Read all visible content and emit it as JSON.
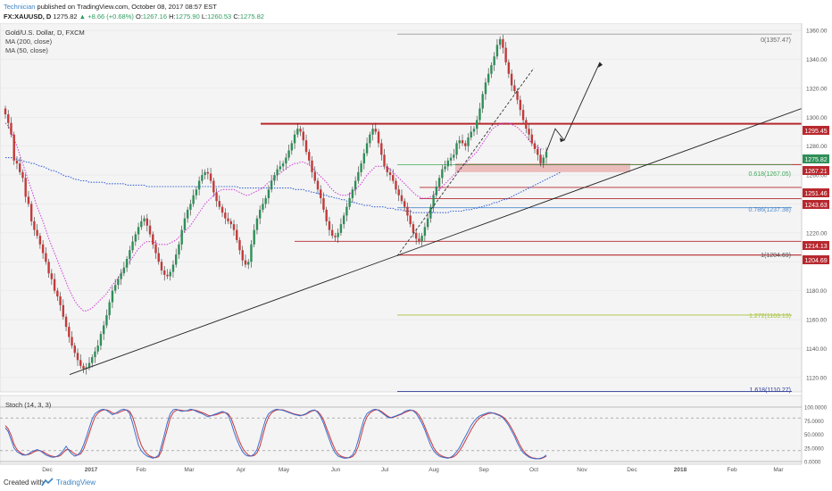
{
  "header": {
    "author": "Technician",
    "published": "published on TradingView.com, October 08, 2017 08:57 EST",
    "symbol": "FX:XAUUSD, D",
    "price": "1275.82",
    "change": "+8.66 (+0.68%)",
    "o_label": "O:",
    "o": "1267.16",
    "h_label": "H:",
    "h": "1275.90",
    "l_label": "L:",
    "l": "1260.53",
    "c_label": "C:",
    "c": "1275.82"
  },
  "legend": {
    "title": "Gold/U.S. Dollar, D, FXCM",
    "ma200": "MA (200, close)",
    "ma50": "MA (50, close)"
  },
  "footer": {
    "created": "Created with",
    "brand": "TradingView"
  },
  "colors": {
    "up": "#2f8f58",
    "down": "#c33a3a",
    "ma200": "#3b66d6",
    "ma50": "#d24ad8",
    "resistance": "#b7282e",
    "fib_green": "#3faa5a",
    "fib_blue": "#4d8ccc",
    "fib_lime": "#a3c233",
    "fib_navy": "#2f3d9a",
    "stoch_k": "#3c6fd1",
    "stoch_d": "#c8383d"
  },
  "chart_data": {
    "type": "candlestick",
    "price_axis": {
      "min": 1110,
      "max": 1365,
      "ticks": [
        1120,
        1140,
        1160,
        1180,
        1200,
        1220,
        1240,
        1260,
        1280,
        1300,
        1320,
        1340,
        1360
      ]
    },
    "x_labels": [
      "Dec",
      "2017",
      "Feb",
      "Mar",
      "Apr",
      "May",
      "Jun",
      "Jul",
      "Aug",
      "Sep",
      "Oct",
      "Nov",
      "Dec",
      "2018",
      "Feb",
      "Mar"
    ],
    "closes": [
      1302,
      1296,
      1288,
      1270,
      1268,
      1262,
      1258,
      1245,
      1240,
      1228,
      1222,
      1218,
      1212,
      1206,
      1200,
      1192,
      1188,
      1180,
      1176,
      1170,
      1162,
      1155,
      1148,
      1142,
      1137,
      1132,
      1128,
      1126,
      1127,
      1130,
      1134,
      1138,
      1142,
      1150,
      1156,
      1163,
      1172,
      1180,
      1184,
      1188,
      1192,
      1196,
      1202,
      1208,
      1214,
      1219,
      1224,
      1228,
      1230,
      1225,
      1219,
      1212,
      1206,
      1200,
      1194,
      1191,
      1190,
      1193,
      1198,
      1205,
      1212,
      1222,
      1230,
      1236,
      1240,
      1246,
      1250,
      1256,
      1260,
      1262,
      1261,
      1256,
      1248,
      1242,
      1238,
      1234,
      1230,
      1228,
      1226,
      1222,
      1215,
      1208,
      1201,
      1198,
      1200,
      1212,
      1222,
      1230,
      1236,
      1240,
      1244,
      1250,
      1256,
      1260,
      1264,
      1266,
      1268,
      1272,
      1277,
      1282,
      1288,
      1292,
      1290,
      1284,
      1276,
      1270,
      1262,
      1256,
      1250,
      1244,
      1236,
      1228,
      1222,
      1218,
      1217,
      1220,
      1226,
      1232,
      1238,
      1244,
      1250,
      1256,
      1262,
      1268,
      1275,
      1282,
      1288,
      1292,
      1290,
      1282,
      1274,
      1266,
      1262,
      1260,
      1256,
      1250,
      1246,
      1242,
      1238,
      1232,
      1226,
      1220,
      1216,
      1214,
      1218,
      1224,
      1230,
      1238,
      1246,
      1252,
      1258,
      1264,
      1266,
      1270,
      1272,
      1274,
      1282,
      1284,
      1282,
      1280,
      1286,
      1290,
      1292,
      1298,
      1306,
      1316,
      1324,
      1330,
      1336,
      1342,
      1350,
      1354,
      1348,
      1338,
      1330,
      1322,
      1318,
      1312,
      1305,
      1298,
      1292,
      1288,
      1282,
      1278,
      1274,
      1268,
      1272,
      1276
    ],
    "ma50": [
      1296,
      1294,
      1290,
      1285,
      1280,
      1274,
      1268,
      1262,
      1256,
      1250,
      1244,
      1238,
      1233,
      1228,
      1222,
      1216,
      1211,
      1206,
      1201,
      1196,
      1191,
      1186,
      1181,
      1177,
      1173,
      1170,
      1168,
      1166,
      1166,
      1167,
      1168,
      1170,
      1172,
      1174,
      1176,
      1178,
      1181,
      1184,
      1186,
      1189,
      1192,
      1195,
      1198,
      1200,
      1203,
      1206,
      1209,
      1211,
      1213,
      1214,
      1214,
      1214,
      1213,
      1212,
      1212,
      1212,
      1212,
      1213,
      1214,
      1215,
      1217,
      1219,
      1221,
      1223,
      1225,
      1228,
      1231,
      1234,
      1237,
      1240,
      1242,
      1244,
      1246,
      1248,
      1249,
      1250,
      1250,
      1250,
      1250,
      1250,
      1249,
      1248,
      1247,
      1246,
      1246,
      1247,
      1248,
      1249,
      1250,
      1251,
      1253,
      1255,
      1256,
      1258,
      1260,
      1261,
      1263,
      1264,
      1266,
      1267,
      1268,
      1268,
      1269,
      1269,
      1268,
      1267,
      1265,
      1263,
      1261,
      1259,
      1257,
      1255,
      1252,
      1250,
      1248,
      1247,
      1246,
      1246,
      1246,
      1247,
      1248,
      1250,
      1252,
      1254,
      1257,
      1260,
      1262,
      1264,
      1266,
      1266,
      1266,
      1266,
      1265,
      1264,
      1262,
      1260,
      1258,
      1256,
      1254,
      1252,
      1250,
      1248,
      1246,
      1245,
      1244,
      1244,
      1244,
      1245,
      1246,
      1248,
      1250,
      1252,
      1254,
      1256,
      1258,
      1260,
      1262,
      1264,
      1266,
      1268,
      1270,
      1272,
      1274,
      1276,
      1279,
      1282,
      1285,
      1288,
      1291,
      1293,
      1294,
      1295,
      1296,
      1296,
      1296,
      1295,
      1294,
      1293,
      1291,
      1289,
      1287,
      1284,
      1282,
      1280,
      1279,
      1278,
      1278
    ],
    "ma200": [
      1272,
      1272,
      1272,
      1271,
      1271,
      1270,
      1270,
      1269,
      1269,
      1268,
      1268,
      1267,
      1266,
      1266,
      1265,
      1264,
      1263,
      1263,
      1262,
      1261,
      1260,
      1259,
      1259,
      1258,
      1257,
      1257,
      1256,
      1256,
      1256,
      1255,
      1255,
      1255,
      1255,
      1255,
      1255,
      1254,
      1254,
      1254,
      1254,
      1254,
      1254,
      1254,
      1253,
      1253,
      1253,
      1253,
      1253,
      1253,
      1253,
      1252,
      1252,
      1252,
      1252,
      1252,
      1252,
      1252,
      1252,
      1252,
      1252,
      1252,
      1252,
      1252,
      1252,
      1252,
      1252,
      1252,
      1252,
      1252,
      1252,
      1252,
      1252,
      1252,
      1252,
      1252,
      1252,
      1252,
      1252,
      1252,
      1252,
      1252,
      1252,
      1251,
      1251,
      1251,
      1251,
      1251,
      1251,
      1251,
      1251,
      1251,
      1251,
      1251,
      1251,
      1251,
      1251,
      1251,
      1251,
      1251,
      1251,
      1251,
      1250,
      1250,
      1250,
      1250,
      1249,
      1249,
      1248,
      1248,
      1247,
      1247,
      1246,
      1246,
      1245,
      1245,
      1244,
      1244,
      1243,
      1243,
      1242,
      1242,
      1241,
      1241,
      1240,
      1240,
      1239,
      1239,
      1239,
      1238,
      1238,
      1238,
      1238,
      1238,
      1237,
      1237,
      1237,
      1236,
      1236,
      1236,
      1235,
      1235,
      1235,
      1234,
      1234,
      1234,
      1234,
      1234,
      1234,
      1234,
      1234,
      1234,
      1234,
      1234,
      1234,
      1234,
      1235,
      1235,
      1235,
      1235,
      1235,
      1236,
      1236,
      1236,
      1237,
      1237,
      1238,
      1238,
      1239,
      1239,
      1240,
      1241,
      1241,
      1242,
      1243,
      1243,
      1244,
      1245,
      1246,
      1247,
      1248,
      1249,
      1250,
      1251,
      1252,
      1253,
      1254,
      1255,
      1256,
      1257,
      1258,
      1259,
      1260,
      1261,
      1262
    ],
    "stoch_axis": {
      "min": 0,
      "max": 100,
      "ticks": [
        0,
        25,
        50,
        75,
        100
      ]
    },
    "stoch_k": [
      62,
      55,
      40,
      25,
      18,
      15,
      12,
      12,
      14,
      18,
      20,
      22,
      20,
      16,
      12,
      10,
      8,
      8,
      10,
      14,
      20,
      28,
      20,
      14,
      10,
      12,
      18,
      30,
      45,
      62,
      78,
      88,
      92,
      95,
      96,
      94,
      90,
      86,
      88,
      92,
      95,
      96,
      94,
      88,
      70,
      50,
      30,
      20,
      14,
      10,
      8,
      6,
      8,
      12,
      30,
      50,
      72,
      88,
      95,
      96,
      94,
      92,
      93,
      94,
      96,
      95,
      92,
      90,
      88,
      85,
      82,
      84,
      86,
      88,
      90,
      92,
      90,
      85,
      72,
      55,
      40,
      28,
      18,
      12,
      10,
      10,
      14,
      22,
      40,
      60,
      78,
      88,
      92,
      95,
      96,
      95,
      94,
      92,
      90,
      88,
      86,
      85,
      84,
      86,
      88,
      92,
      94,
      95,
      90,
      82,
      70,
      55,
      40,
      26,
      16,
      10,
      8,
      6,
      6,
      8,
      12,
      22,
      40,
      60,
      78,
      88,
      92,
      95,
      96,
      94,
      90,
      86,
      82,
      80,
      82,
      84,
      86,
      88,
      92,
      94,
      95,
      93,
      88,
      80,
      70,
      58,
      44,
      30,
      20,
      14,
      10,
      8,
      7,
      6,
      8,
      12,
      18,
      26,
      36,
      46,
      56,
      66,
      74,
      80,
      84,
      86,
      88,
      90,
      90,
      88,
      86,
      84,
      80,
      74,
      66,
      56,
      46,
      34,
      24,
      16,
      12,
      8,
      6,
      5,
      5,
      6,
      8,
      12
    ],
    "stoch_d": [
      66,
      60,
      48,
      32,
      22,
      17,
      14,
      12,
      13,
      15,
      18,
      20,
      20,
      18,
      15,
      12,
      10,
      9,
      9,
      11,
      16,
      22,
      22,
      18,
      14,
      12,
      14,
      22,
      36,
      52,
      68,
      82,
      89,
      93,
      95,
      95,
      93,
      89,
      88,
      89,
      92,
      94,
      95,
      92,
      82,
      65,
      45,
      30,
      20,
      14,
      10,
      8,
      7,
      9,
      20,
      40,
      60,
      80,
      90,
      94,
      95,
      94,
      93,
      93,
      94,
      95,
      94,
      92,
      90,
      88,
      85,
      84,
      85,
      86,
      88,
      90,
      90,
      88,
      80,
      66,
      50,
      36,
      25,
      17,
      12,
      10,
      11,
      16,
      28,
      48,
      68,
      82,
      89,
      93,
      95,
      95,
      95,
      93,
      91,
      89,
      87,
      86,
      85,
      85,
      87,
      90,
      93,
      94,
      92,
      86,
      76,
      62,
      48,
      34,
      22,
      14,
      10,
      8,
      7,
      7,
      9,
      15,
      28,
      48,
      68,
      82,
      89,
      93,
      95,
      95,
      92,
      88,
      84,
      81,
      81,
      83,
      85,
      87,
      90,
      92,
      94,
      94,
      91,
      85,
      76,
      64,
      51,
      38,
      26,
      18,
      13,
      10,
      8,
      7,
      7,
      9,
      13,
      20,
      28,
      38,
      48,
      58,
      67,
      75,
      80,
      84,
      86,
      88,
      89,
      89,
      87,
      85,
      82,
      77,
      70,
      61,
      51,
      40,
      29,
      20,
      14,
      10,
      7,
      6,
      5,
      5,
      7,
      10
    ]
  },
  "levels": {
    "res1": "1295.45",
    "close": "1275.82",
    "sup1": "1267.21",
    "sup2": "1251.46",
    "sup3": "1243.63",
    "sup4": "1214.13",
    "sup5": "1204.69",
    "fib0": "0(1357.47)",
    "fib618": "0.618(1267.05)",
    "fib786": "0.786(1237.38)",
    "fib1": "1(1204.69)",
    "fib1272": "1.272(1163.13)",
    "fib1618": "1.618(1110.27)"
  },
  "stoch": {
    "label": "Stoch (14, 3, 3)",
    "ticks": [
      "100.0000",
      "75.0000",
      "50.0000",
      "25.0000",
      "0.0000"
    ]
  }
}
